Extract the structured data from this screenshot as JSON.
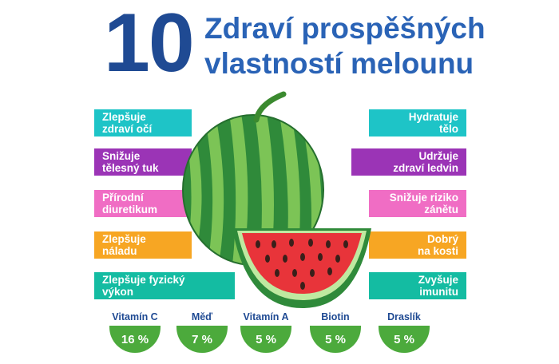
{
  "header": {
    "number": "10",
    "line1": "Zdraví prospěšných",
    "line2": "vlastností melounu"
  },
  "benefits_left": [
    {
      "line1": "Zlepšuje",
      "line2": "zdraví očí",
      "color": "#1ec4c7"
    },
    {
      "line1": "Snižuje",
      "line2": "tělesný tuk",
      "color": "#9b34b6"
    },
    {
      "line1": "Přírodní",
      "line2": "diuretikum",
      "color": "#f06dc4"
    },
    {
      "line1": "Zlepšuje",
      "line2": "náladu",
      "color": "#f7a623"
    },
    {
      "line1": "Zlepšuje fyzický",
      "line2": "výkon",
      "color": "#14bca2"
    }
  ],
  "benefits_right": [
    {
      "line1": "Hydratuje",
      "line2": "tělo",
      "color": "#1ec4c7"
    },
    {
      "line1": "Udržuje",
      "line2": "zdraví ledvin",
      "color": "#9b34b6"
    },
    {
      "line1": "Snižuje riziko",
      "line2": "zánětu",
      "color": "#f06dc4"
    },
    {
      "line1": "Dobrý",
      "line2": "na kosti",
      "color": "#f7a623"
    },
    {
      "line1": "Zvyšuje",
      "line2": "imunitu",
      "color": "#14bca2"
    }
  ],
  "nutrients": [
    {
      "name": "Vitamín C",
      "value": "16 %"
    },
    {
      "name": "Měď",
      "value": "7 %"
    },
    {
      "name": "Vitamín A",
      "value": "5 %"
    },
    {
      "name": "Biotin",
      "value": "5 %"
    },
    {
      "name": "Draslík",
      "value": "5 %"
    }
  ],
  "illustration": {
    "icon": "watermelon-icon",
    "colors": {
      "rind_dark": "#2f8a3a",
      "rind_light": "#7cc456",
      "flesh": "#e8343a",
      "seed": "#3a1f1a"
    }
  }
}
